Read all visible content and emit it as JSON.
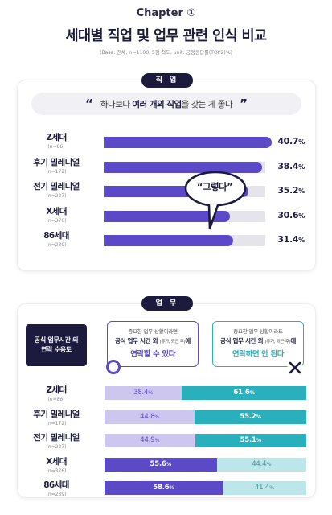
{
  "header": {
    "chapter": "Chapter ①",
    "title": "세대별 직업 및 업무 관련 인식 비교",
    "base_note": "(Base: 전체, n=1100, 5점 척도, unit: 긍정응답률(TOP2)%)"
  },
  "colors": {
    "navy": "#1c1b3d",
    "purple": "#5b49c8",
    "lavender": "#cdc7ef",
    "teal": "#2ab0bd",
    "light_teal": "#bde6ea",
    "track": "#e4e4ea"
  },
  "icons": {
    "circle": "circle-o-icon",
    "cross": "x-mark-icon",
    "bubble": "speech-bubble-icon"
  },
  "section1": {
    "badge": "직 업",
    "quote_open": "“",
    "quote_close": "”",
    "quote_pre": "하나보다 ",
    "quote_bold": "여러 개의 직업",
    "quote_post": "을 갖는 게 좋다",
    "bubble": "“그렇다”"
  },
  "section2": {
    "badge": "업 무",
    "side_label_1": "공식 업무시간 외",
    "side_label_2": "연락 수용도",
    "left_card": {
      "line1": "중요한 업무 상황이라면",
      "line2_bold": "공식 업무 시간 외",
      "line2_small": "(휴가, 퇴근 후)",
      "line2_tail": "에",
      "line3": "연락할 수 있다"
    },
    "right_card": {
      "line1": "중요한 업무 상황이라도",
      "line2_bold": "공식 업무 시간 외",
      "line2_small": "(휴가, 퇴근 후)",
      "line2_tail": "에",
      "line3": "연락하면 안 된다"
    }
  },
  "chart_data": [
    {
      "type": "bar",
      "unit": "%",
      "categories": [
        "Z세대",
        "후기 밀레니얼",
        "전기 밀레니얼",
        "X세대",
        "86세대"
      ],
      "sample_sizes": [
        "(n=86)",
        "(n=172)",
        "(n=227)",
        "(n=376)",
        "(n=239)"
      ],
      "values": [
        40.7,
        38.4,
        35.2,
        30.6,
        31.4
      ],
      "ylim": [
        0,
        100
      ],
      "grid": false,
      "value_labels": [
        {
          "int": "40.7",
          "unit": "%"
        },
        {
          "int": "38.4",
          "unit": "%"
        },
        {
          "int": "35.2",
          "unit": "%"
        },
        {
          "int": "30.6",
          "unit": "%"
        },
        {
          "int": "31.4",
          "unit": "%"
        }
      ]
    },
    {
      "type": "bar",
      "stacked": true,
      "unit": "%",
      "categories": [
        "Z세대",
        "후기 밀레니얼",
        "전기 밀레니얼",
        "X세대",
        "86세대"
      ],
      "sample_sizes": [
        "(n=86)",
        "(n=172)",
        "(n=227)",
        "(n=376)",
        "(n=239)"
      ],
      "series": [
        {
          "values": [
            38.4,
            44.8,
            44.9,
            55.6,
            58.6
          ]
        },
        {
          "values": [
            61.6,
            55.2,
            55.1,
            44.4,
            41.4
          ]
        }
      ],
      "ylim": [
        0,
        100
      ],
      "grid": false,
      "value_labels": [
        [
          {
            "int": "38.4",
            "unit": "%"
          },
          {
            "int": "61.6",
            "unit": "%"
          }
        ],
        [
          {
            "int": "44.8",
            "unit": "%"
          },
          {
            "int": "55.2",
            "unit": "%"
          }
        ],
        [
          {
            "int": "44.9",
            "unit": "%"
          },
          {
            "int": "55.1",
            "unit": "%"
          }
        ],
        [
          {
            "int": "55.6",
            "unit": "%"
          },
          {
            "int": "44.4",
            "unit": "%"
          }
        ],
        [
          {
            "int": "58.6",
            "unit": "%"
          },
          {
            "int": "41.4",
            "unit": "%"
          }
        ]
      ]
    }
  ]
}
